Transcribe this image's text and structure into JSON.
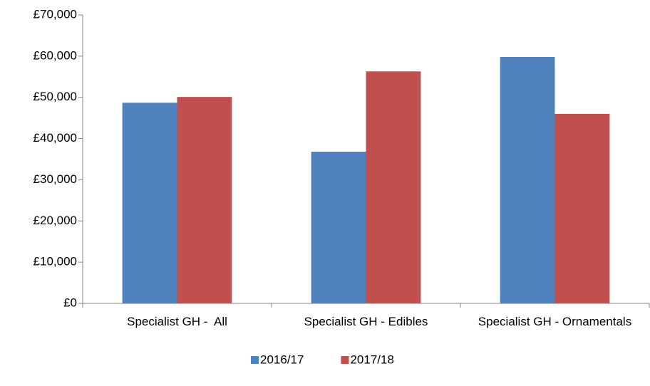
{
  "chart_data": {
    "type": "bar",
    "categories": [
      "Specialist GH -  All",
      "Specialist GH - Edibles",
      "Specialist GH - Ornamentals"
    ],
    "series": [
      {
        "name": "2016/17",
        "color": "#4f81bd",
        "values": [
          48700,
          36800,
          59800
        ]
      },
      {
        "name": "2017/18",
        "color": "#c0504d",
        "values": [
          50100,
          56300,
          46000
        ]
      }
    ],
    "ylim": [
      0,
      70000
    ],
    "yticks": [
      {
        "value": 0,
        "label": "£0"
      },
      {
        "value": 10000,
        "label": "£10,000"
      },
      {
        "value": 20000,
        "label": "£20,000"
      },
      {
        "value": 30000,
        "label": "£30,000"
      },
      {
        "value": 40000,
        "label": "£40,000"
      },
      {
        "value": 50000,
        "label": "£50,000"
      },
      {
        "value": 60000,
        "label": "£60,000"
      },
      {
        "value": 70000,
        "label": "£70,000"
      }
    ],
    "legend": "bottom"
  }
}
